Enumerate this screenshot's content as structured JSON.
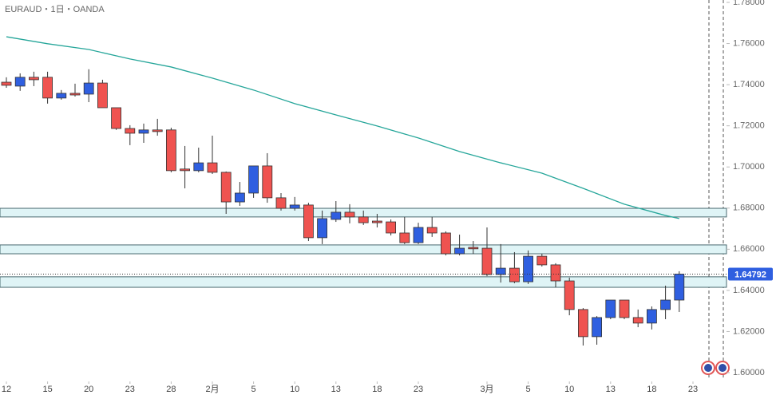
{
  "chart_data": {
    "type": "candlestick",
    "title": "EURAUD・1日・OANDA",
    "up_color": "#2f5fe0",
    "down_color": "#ef5350",
    "ma_color": "#26a69a",
    "zone_color": "#dff4f6",
    "open": [
      1.7412,
      1.7393,
      1.7436,
      1.7436,
      1.7335,
      1.7358,
      1.7354,
      1.7408,
      1.7288,
      1.7187,
      1.7164,
      1.718,
      1.718,
      1.699,
      1.6982,
      1.702,
      1.6974,
      1.683,
      1.6873,
      1.7005,
      1.685,
      1.6799,
      1.6815,
      1.6656,
      1.6745,
      1.678,
      1.6757,
      1.6737,
      1.6733,
      1.6679,
      1.6632,
      1.6706,
      1.6679,
      1.6578,
      1.6609,
      1.6605,
      1.6477,
      1.6508,
      1.6442,
      1.6566,
      1.6524,
      1.6446,
      1.6307,
      1.6175,
      1.6268,
      1.6353,
      1.6268,
      1.6241,
      1.6307,
      1.6353
    ],
    "high": [
      1.7436,
      1.7455,
      1.7463,
      1.7463,
      1.7374,
      1.7405,
      1.7475,
      1.7424,
      1.7288,
      1.7203,
      1.7211,
      1.7234,
      1.7191,
      1.7102,
      1.7094,
      1.7152,
      1.6978,
      1.6927,
      1.7005,
      1.7067,
      1.6873,
      1.6854,
      1.6826,
      1.6788,
      1.6834,
      1.6819,
      1.6788,
      1.6772,
      1.6745,
      1.6757,
      1.6729,
      1.6757,
      1.6687,
      1.6671,
      1.664,
      1.6706,
      1.6625,
      1.6586,
      1.6594,
      1.6578,
      1.6532,
      1.6462,
      1.6314,
      1.6275,
      1.6353,
      1.6353,
      1.6307,
      1.6322,
      1.6423,
      1.6493
    ],
    "low": [
      1.7385,
      1.737,
      1.7393,
      1.7308,
      1.7327,
      1.7342,
      1.7315,
      1.7288,
      1.718,
      1.7106,
      1.7117,
      1.7152,
      1.6974,
      1.6896,
      1.6974,
      1.6966,
      1.6772,
      1.6811,
      1.685,
      1.6826,
      1.6788,
      1.6788,
      1.664,
      1.6625,
      1.6733,
      1.6726,
      1.6718,
      1.6706,
      1.6667,
      1.6625,
      1.6625,
      1.666,
      1.657,
      1.657,
      1.6578,
      1.6469,
      1.6438,
      1.6435,
      1.6431,
      1.6516,
      1.6415,
      1.6279,
      1.6132,
      1.6136,
      1.626,
      1.626,
      1.6221,
      1.621,
      1.626,
      1.6295
    ],
    "close": [
      1.7397,
      1.7436,
      1.7424,
      1.7335,
      1.7358,
      1.735,
      1.7408,
      1.7288,
      1.7187,
      1.7164,
      1.718,
      1.7172,
      1.6982,
      1.6982,
      1.702,
      1.6974,
      1.683,
      1.6873,
      1.7005,
      1.685,
      1.6799,
      1.6815,
      1.6656,
      1.6749,
      1.678,
      1.6757,
      1.6729,
      1.6729,
      1.6679,
      1.6632,
      1.6706,
      1.6679,
      1.6578,
      1.6605,
      1.6602,
      1.6477,
      1.6508,
      1.6442,
      1.6566,
      1.6524,
      1.6446,
      1.6307,
      1.6175,
      1.6268,
      1.6353,
      1.6268,
      1.6241,
      1.6307,
      1.6353,
      1.64792
    ],
    "ma": {
      "x": [
        0,
        3,
        6,
        9,
        12,
        15,
        18,
        21,
        24,
        27,
        30,
        33,
        36,
        39,
        42,
        45,
        48,
        49
      ],
      "values": [
        1.7633,
        1.7599,
        1.7571,
        1.7525,
        1.7486,
        1.7432,
        1.7374,
        1.7308,
        1.7253,
        1.7199,
        1.7141,
        1.7075,
        1.702,
        1.697,
        1.6896,
        1.6819,
        1.6764,
        1.6749
      ]
    },
    "zones": [
      [
        1.6799,
        1.6757
      ],
      [
        1.6621,
        1.6578
      ],
      [
        1.6466,
        1.6415
      ]
    ],
    "ylim": [
      1.6,
      1.78
    ],
    "yticks": [
      {
        "value": 1.78,
        "label": "1.78000"
      },
      {
        "value": 1.76,
        "label": "1.76000"
      },
      {
        "value": 1.74,
        "label": "1.74000"
      },
      {
        "value": 1.72,
        "label": "1.72000"
      },
      {
        "value": 1.7,
        "label": "1.70000"
      },
      {
        "value": 1.68,
        "label": "1.68000"
      },
      {
        "value": 1.66,
        "label": "1.66000"
      },
      {
        "value": 1.64,
        "label": "1.64000"
      },
      {
        "value": 1.62,
        "label": "1.62000"
      },
      {
        "value": 1.6,
        "label": "1.60000"
      }
    ],
    "xticks": [
      {
        "value": 0,
        "label": "12"
      },
      {
        "value": 3,
        "label": "15"
      },
      {
        "value": 6,
        "label": "20"
      },
      {
        "value": 9,
        "label": "23"
      },
      {
        "value": 12,
        "label": "28"
      },
      {
        "value": 15,
        "label": "2月"
      },
      {
        "value": 18,
        "label": "5"
      },
      {
        "value": 21,
        "label": "10"
      },
      {
        "value": 24,
        "label": "13"
      },
      {
        "value": 27,
        "label": "18"
      },
      {
        "value": 30,
        "label": "23"
      },
      {
        "value": 35,
        "label": "3月"
      },
      {
        "value": 38,
        "label": "5"
      },
      {
        "value": 41,
        "label": "10"
      },
      {
        "value": 44,
        "label": "13"
      },
      {
        "value": 47,
        "label": "18"
      },
      {
        "value": 50,
        "label": "23"
      }
    ]
  }
}
